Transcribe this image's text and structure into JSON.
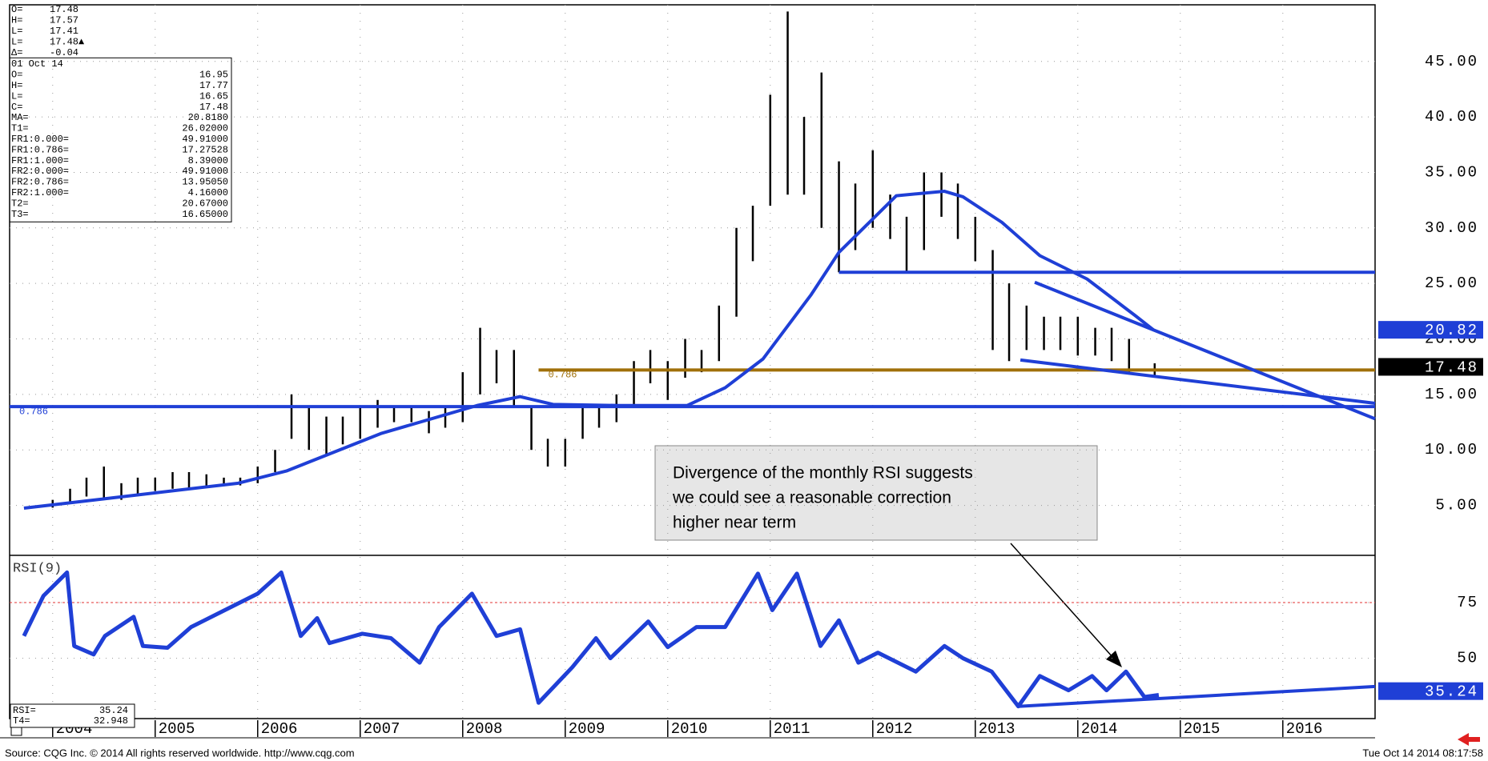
{
  "chart_data": [
    {
      "type": "hlbar",
      "xlim": [
        2003.58,
        2016.9
      ],
      "ylim": [
        0.5,
        50.1
      ],
      "xticks": [
        2004,
        2005,
        2006,
        2007,
        2008,
        2009,
        2010,
        2011,
        2012,
        2013,
        2014,
        2015,
        2016
      ],
      "yticks": [
        {
          "value": 5,
          "label": "5.00"
        },
        {
          "value": 10,
          "label": "10.00"
        },
        {
          "value": 15,
          "label": "15.00"
        },
        {
          "value": 20,
          "label": "20.00"
        },
        {
          "value": 25,
          "label": "25.00"
        },
        {
          "value": 30,
          "label": "30.00"
        },
        {
          "value": 35,
          "label": "35.00"
        },
        {
          "value": 40,
          "label": "40.00"
        },
        {
          "value": 45,
          "label": "45.00"
        }
      ],
      "grid": true,
      "color": "#000000",
      "x": [
        2004.0,
        2004.17,
        2004.33,
        2004.5,
        2004.67,
        2004.83,
        2005.0,
        2005.17,
        2005.33,
        2005.5,
        2005.67,
        2005.83,
        2006.0,
        2006.17,
        2006.33,
        2006.5,
        2006.67,
        2006.83,
        2007.0,
        2007.17,
        2007.33,
        2007.5,
        2007.67,
        2007.83,
        2008.0,
        2008.17,
        2008.33,
        2008.5,
        2008.67,
        2008.83,
        2009.0,
        2009.17,
        2009.33,
        2009.5,
        2009.67,
        2009.83,
        2010.0,
        2010.17,
        2010.33,
        2010.5,
        2010.67,
        2010.83,
        2011.0,
        2011.17,
        2011.33,
        2011.5,
        2011.67,
        2011.83,
        2012.0,
        2012.17,
        2012.33,
        2012.5,
        2012.67,
        2012.83,
        2013.0,
        2013.17,
        2013.33,
        2013.5,
        2013.67,
        2013.83,
        2014.0,
        2014.17,
        2014.33,
        2014.5,
        2014.75
      ],
      "high": [
        5.5,
        6.5,
        7.5,
        8.5,
        7,
        7.5,
        7.5,
        8,
        8,
        7.8,
        7.5,
        7.5,
        8.5,
        10,
        15,
        14,
        13,
        13,
        14,
        14.5,
        14,
        14,
        13.5,
        14,
        17,
        21,
        19,
        19,
        14,
        11,
        11,
        14,
        14,
        15,
        18,
        19,
        18,
        20,
        19,
        23,
        30,
        32,
        42,
        49.5,
        40,
        44,
        36,
        34,
        37,
        33,
        31,
        35,
        35,
        34,
        31,
        28,
        25,
        23,
        22,
        22,
        22,
        21,
        21,
        20,
        17.8
      ],
      "low": [
        4.8,
        5.2,
        5.8,
        5.5,
        5.5,
        6,
        6.3,
        6.5,
        6.5,
        6.6,
        6.8,
        6.8,
        7,
        8,
        11,
        10,
        9.5,
        10.5,
        11,
        12,
        12.5,
        12.5,
        11.5,
        12,
        12.5,
        15,
        16,
        14,
        10,
        8.5,
        8.5,
        11,
        12,
        12.5,
        14,
        16,
        14.5,
        16.5,
        17,
        18,
        22,
        27,
        32,
        33,
        33,
        30,
        26,
        28,
        30,
        29,
        26,
        28,
        31,
        29,
        27,
        19,
        18,
        19,
        19,
        19,
        18.5,
        18.5,
        18,
        17,
        16.6
      ],
      "ma": {
        "color": "#1f3fd6",
        "x": [
          2003.72,
          2004.51,
          2005.81,
          2006.28,
          2007.21,
          2008.14,
          2008.56,
          2008.88,
          2009.53,
          2010.19,
          2010.56,
          2010.93,
          2011.4,
          2011.67,
          2012.23,
          2012.7,
          2012.88,
          2013.26,
          2013.63,
          2014.09,
          2014.56,
          2014.74
        ],
        "values": [
          4.75,
          5.6,
          7,
          8.1,
          11.5,
          14,
          14.8,
          14.1,
          14,
          14,
          15.6,
          18.2,
          24,
          27.8,
          32.9,
          33.3,
          32.8,
          30.5,
          27.5,
          25.4,
          22.1,
          20.8
        ]
      },
      "levels": [
        {
          "value": 26,
          "from": 2011.67,
          "color": "#1f3fd6"
        },
        {
          "value": 13.9,
          "from": 2003.58,
          "color": "#1f3fd6",
          "label": "0.786"
        },
        {
          "value": 17.2,
          "from": 2008.74,
          "color": "#a0700a",
          "label": "0.786"
        }
      ],
      "trendlines": [
        {
          "x": [
            2013.58,
            2016.9
          ],
          "values": [
            25.1,
            12.8
          ],
          "color": "#1f3fd6"
        },
        {
          "x": [
            2013.44,
            2016.9
          ],
          "values": [
            18.1,
            14.2
          ],
          "color": "#1f3fd6"
        }
      ],
      "markers": [
        {
          "value": 20.82,
          "color": "#1f3fd6"
        },
        {
          "value": 17.48,
          "color": "#000000"
        }
      ]
    },
    {
      "type": "line",
      "title": "RSI(9)",
      "xlim": [
        2003.58,
        2016.9
      ],
      "ylim": [
        22.9,
        96.2
      ],
      "yticks": [
        50,
        75
      ],
      "color": "#1f3fd6",
      "x": [
        2003.72,
        2003.91,
        2004.14,
        2004.21,
        2004.4,
        2004.51,
        2004.79,
        2004.88,
        2005.12,
        2005.35,
        2006.0,
        2006.23,
        2006.42,
        2006.58,
        2006.7,
        2007.02,
        2007.3,
        2007.58,
        2007.77,
        2008.09,
        2008.33,
        2008.56,
        2008.74,
        2009.07,
        2009.3,
        2009.44,
        2009.81,
        2010.0,
        2010.28,
        2010.56,
        2010.88,
        2011.02,
        2011.26,
        2011.49,
        2011.67,
        2011.86,
        2012.05,
        2012.42,
        2012.7,
        2012.88,
        2013.16,
        2013.42,
        2013.63,
        2013.91,
        2014.14,
        2014.28,
        2014.47,
        2014.65,
        2014.79
      ],
      "values": [
        60,
        78,
        88.5,
        55.5,
        51.7,
        60,
        68.6,
        55.5,
        54.7,
        64,
        79,
        88.5,
        60,
        68,
        56.8,
        61,
        59,
        48,
        64,
        79,
        60,
        63,
        30,
        46,
        59,
        50,
        66.5,
        55,
        64,
        64,
        88,
        71.6,
        88,
        55.5,
        67,
        48,
        52.5,
        44,
        55.5,
        50,
        44,
        28.4,
        42,
        35.6,
        42,
        35.6,
        44,
        32.6,
        33.5
      ],
      "overbought": {
        "value": 75,
        "color": "#e03030"
      },
      "trendlines": [
        {
          "x": [
            2013.42,
            2016.9
          ],
          "values": [
            28.4,
            37.3
          ],
          "color": "#1f3fd6"
        }
      ],
      "markers": [
        {
          "value": 35.24,
          "color": "#1f3fd6"
        }
      ]
    }
  ],
  "info_top": [
    {
      "label": "O=",
      "value": "17.48"
    },
    {
      "label": "H=",
      "value": "17.57"
    },
    {
      "label": "L=",
      "value": "17.41"
    },
    {
      "label": "L=",
      "value": "17.48▲"
    },
    {
      "label": "Δ=",
      "value": "-0.04"
    }
  ],
  "info_box": {
    "date": "01 Oct 14",
    "rows": [
      {
        "label": "O=",
        "value": "16.95"
      },
      {
        "label": "H=",
        "value": "17.77"
      },
      {
        "label": "L=",
        "value": "16.65"
      },
      {
        "label": "C=",
        "value": "17.48"
      },
      {
        "label": "MA=",
        "value": "20.8180"
      },
      {
        "label": "T1=",
        "value": "26.02000"
      },
      {
        "label": "FR1:0.000=",
        "value": "49.91000"
      },
      {
        "label": "FR1:0.786=",
        "value": "17.27528"
      },
      {
        "label": "FR1:1.000=",
        "value": "8.39000"
      },
      {
        "label": "FR2:0.000=",
        "value": "49.91000"
      },
      {
        "label": "FR2:0.786=",
        "value": "13.95050"
      },
      {
        "label": "FR2:1.000=",
        "value": "4.16000"
      },
      {
        "label": "T2=",
        "value": "20.67000"
      },
      {
        "label": "T3=",
        "value": "16.65000"
      }
    ]
  },
  "rsi_box": [
    {
      "label": "RSI=",
      "value": "35.24"
    },
    {
      "label": "T4=",
      "value": "32.948"
    }
  ],
  "annotation": [
    "Divergence of the monthly RSI suggests",
    "we could see a reasonable correction",
    "higher near term"
  ],
  "footer": {
    "source": "Source: CQG Inc. © 2014 All rights reserved worldwide. http://www.cqg.com",
    "timestamp": "Tue Oct 14 2014 08:17:58"
  }
}
